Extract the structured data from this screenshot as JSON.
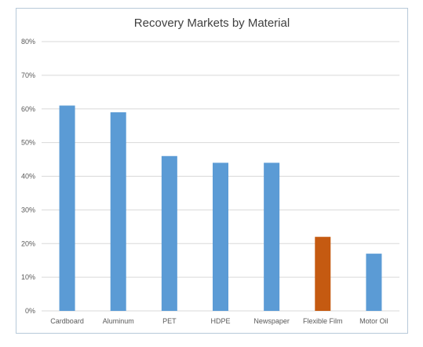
{
  "chart_data": {
    "type": "bar",
    "title": "Recovery Markets by Material",
    "xlabel": "",
    "ylabel": "",
    "categories": [
      "Cardboard",
      "Aluminum",
      "PET",
      "HDPE",
      "Newspaper",
      "Flexible Film",
      "Motor Oil"
    ],
    "values": [
      61,
      59,
      46,
      44,
      44,
      22,
      17
    ],
    "ylim": [
      0,
      80
    ],
    "y_ticks": [
      "0%",
      "10%",
      "20%",
      "30%",
      "40%",
      "50%",
      "60%",
      "70%",
      "80%"
    ],
    "grid": true,
    "colors": {
      "default_bar": "#5b9bd5",
      "highlight_bar": "#c55a11",
      "highlight_category": "Flexible Film",
      "gridline": "#d9d9d9"
    }
  }
}
